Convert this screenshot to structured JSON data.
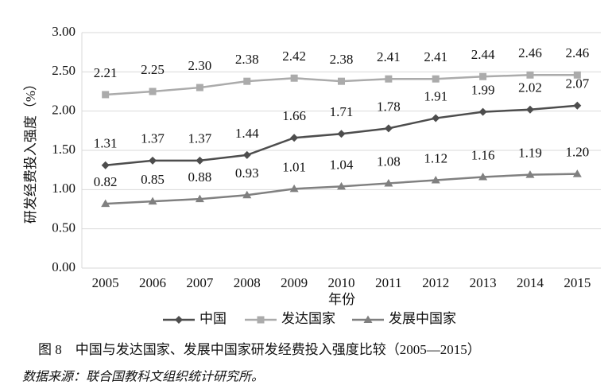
{
  "chart_data": {
    "type": "line",
    "ylabel": "研发经费投入强度（%）",
    "xlabel": "年份",
    "caption": "图 8　中国与发达国家、发展中国家研发经费投入强度比较（2005—2015）",
    "source": "数据来源：联合国教科文组织统计研究所。",
    "categories": [
      "2005",
      "2006",
      "2007",
      "2008",
      "2009",
      "2010",
      "2011",
      "2012",
      "2013",
      "2014",
      "2015"
    ],
    "ylim": [
      0,
      3
    ],
    "yticks": [
      {
        "value": 0,
        "label": "0.00"
      },
      {
        "value": 0.5,
        "label": "0.50"
      },
      {
        "value": 1,
        "label": "1.00"
      },
      {
        "value": 1.5,
        "label": "1.50"
      },
      {
        "value": 2,
        "label": "2.00"
      },
      {
        "value": 2.5,
        "label": "2.50"
      },
      {
        "value": 3,
        "label": "3.00"
      }
    ],
    "grid": true,
    "legend": "bottom",
    "series": [
      {
        "name": "中国",
        "color": "#4d4d4d",
        "marker": "diamond",
        "values": [
          1.31,
          1.37,
          1.37,
          1.44,
          1.66,
          1.71,
          1.78,
          1.91,
          1.99,
          2.02,
          2.07
        ],
        "value_labels": [
          "1.31",
          "1.37",
          "1.37",
          "1.44",
          "1.66",
          "1.71",
          "1.78",
          "1.91",
          "1.99",
          "2.02",
          "2.07"
        ]
      },
      {
        "name": "发达国家",
        "color": "#ababab",
        "marker": "square",
        "values": [
          2.21,
          2.25,
          2.3,
          2.38,
          2.42,
          2.38,
          2.41,
          2.41,
          2.44,
          2.46,
          2.46
        ],
        "value_labels": [
          "2.21",
          "2.25",
          "2.30",
          "2.38",
          "2.42",
          "2.38",
          "2.41",
          "2.41",
          "2.44",
          "2.46",
          "2.46"
        ]
      },
      {
        "name": "发展中国家",
        "color": "#808080",
        "marker": "triangle",
        "values": [
          0.82,
          0.85,
          0.88,
          0.93,
          1.01,
          1.04,
          1.08,
          1.12,
          1.16,
          1.19,
          1.2
        ],
        "value_labels": [
          "0.82",
          "0.85",
          "0.88",
          "0.93",
          "1.01",
          "1.04",
          "1.08",
          "1.12",
          "1.16",
          "1.19",
          "1.20"
        ]
      }
    ]
  }
}
